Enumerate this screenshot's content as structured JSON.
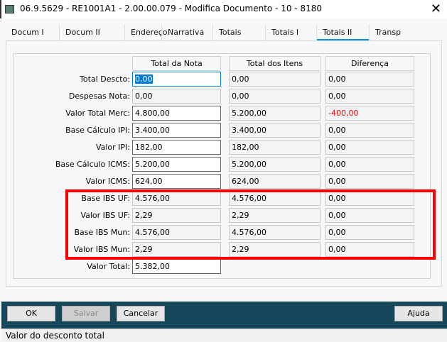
{
  "window": {
    "title": "06.9.5629 - RE1001A1 - 2.00.00.079 - Modifica Documento - 10 - 8180"
  },
  "tabs": [
    {
      "label": "Docum I"
    },
    {
      "label": "Docum II"
    },
    {
      "label": "Endereço"
    },
    {
      "label": "Narrativa"
    },
    {
      "label": "Totais"
    },
    {
      "label": "Totais I"
    },
    {
      "label": "Totais II",
      "active": true
    },
    {
      "label": "Transp"
    }
  ],
  "columns": [
    "Total da Nota",
    "Total dos Itens",
    "Diferença"
  ],
  "rows": [
    {
      "label": "Total Descto:",
      "nota": "0,00",
      "itens": "0,00",
      "dif": "0,00"
    },
    {
      "label": "Despesas Nota:",
      "nota": "0,00",
      "itens": "0,00",
      "dif": "0,00"
    },
    {
      "label": "Valor Total Merc:",
      "nota": "4.800,00",
      "itens": "5.200,00",
      "dif": "-400,00"
    },
    {
      "label": "Base Cálculo IPI:",
      "nota": "3.400,00",
      "itens": "3.400,00",
      "dif": "0,00"
    },
    {
      "label": "Valor IPI:",
      "nota": "182,00",
      "itens": "182,00",
      "dif": "0,00"
    },
    {
      "label": "Base Cálculo ICMS:",
      "nota": "5.200,00",
      "itens": "5.200,00",
      "dif": "0,00"
    },
    {
      "label": "Valor ICMS:",
      "nota": "624,00",
      "itens": "624,00",
      "dif": "0,00"
    },
    {
      "label": "Base IBS UF:",
      "nota": "4.576,00",
      "itens": "4.576,00",
      "dif": "0,00"
    },
    {
      "label": "Valor IBS UF:",
      "nota": "2,29",
      "itens": "2,29",
      "dif": "0,00"
    },
    {
      "label": "Base IBS Mun:",
      "nota": "4.576,00",
      "itens": "4.576,00",
      "dif": "0,00"
    },
    {
      "label": "Valor IBS Mun:",
      "nota": "2,29",
      "itens": "2,29",
      "dif": "0,00"
    }
  ],
  "total": {
    "label": "Valor Total:",
    "nota": "5.382,00"
  },
  "buttons": {
    "ok": "OK",
    "salvar": "Salvar",
    "cancelar": "Cancelar",
    "ajuda": "Ajuda"
  },
  "status": "Valor do desconto total",
  "colors": {
    "accent": "#0a8fd6",
    "footer": "#17475a",
    "highlight": "#ff0000",
    "negative": "#e00000"
  }
}
